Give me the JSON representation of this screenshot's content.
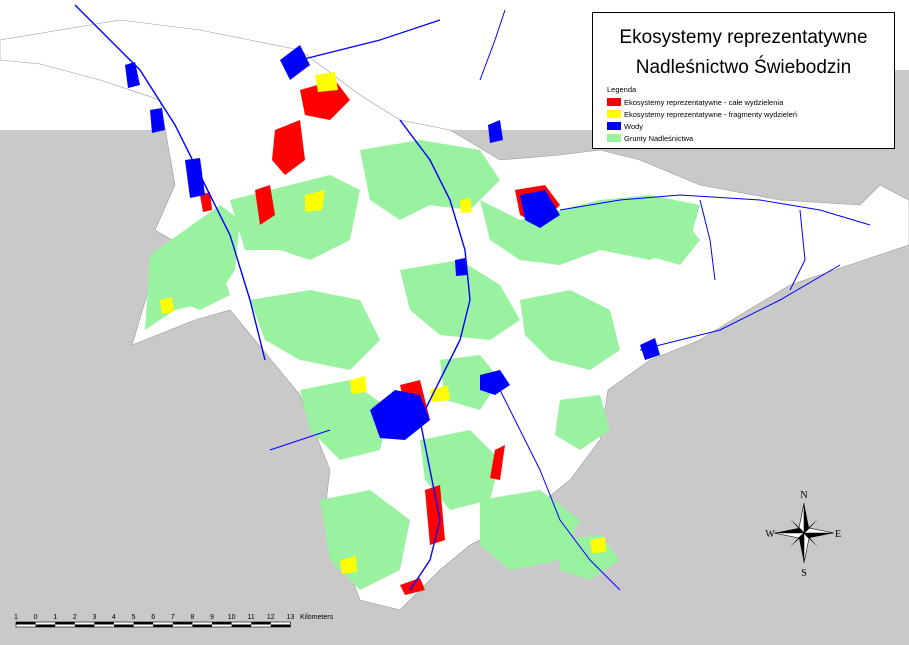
{
  "title": {
    "line1": "Ekosystemy reprezentatywne",
    "line2": "Nadleśnictwo Świebodzin"
  },
  "legend": {
    "heading": "Legenda",
    "items": [
      {
        "label": "Ekosystemy reprezentatywne - całe wydzielenia",
        "color": "#ff0000"
      },
      {
        "label": "Ekosystemy reprezentatywne - fragmenty wydzieleń",
        "color": "#ffff00"
      },
      {
        "label": "Wody",
        "color": "#0000ff"
      },
      {
        "label": "Grunty Nadleśnictwa",
        "color": "#99f29f"
      }
    ]
  },
  "compass": {
    "n": "N",
    "s": "S",
    "e": "E",
    "w": "W"
  },
  "scale_bar": {
    "ticks": [
      "1",
      "0",
      "1",
      "2",
      "3",
      "4",
      "5",
      "6",
      "7",
      "8",
      "9",
      "10",
      "11",
      "12",
      "13"
    ],
    "unit": "Kilometers"
  },
  "colors": {
    "outside_area": "#c9c9c9",
    "district_fill": "#ffffff",
    "forest_land": "#99f29f",
    "representative_whole": "#ff0000",
    "representative_fragments": "#ffff00",
    "water": "#0000ff"
  }
}
